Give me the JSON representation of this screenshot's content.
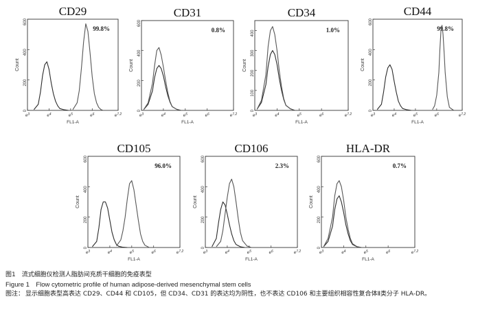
{
  "figure": {
    "caption_cn": "图1　流式细胞仪检测人脂肪间充质干细胞的免疫表型",
    "caption_en": "Figure 1　Flow cytometric profile of human adipose-derived mesenchymal stem cells",
    "note_label": "图注：",
    "note_text": "显示细胞表型高表达 CD29、CD44 和 CD105，但 CD34、CD31 的表达均为阴性，也不表达 CD106 和主要组织相容性复合体Ⅱ类分子 HLA-DR。"
  },
  "chart_data": [
    {
      "type": "area",
      "title": "CD29",
      "percent": "99.8%",
      "xlabel": "FL1-A",
      "ylabel": "Count",
      "xscale": "log",
      "xlim": [
        3,
        7.2
      ],
      "ylim": [
        0,
        600
      ],
      "xtick_labels": [
        "10^3",
        "10^4",
        "10^5",
        "10^6",
        "10^7.2"
      ],
      "ytick_labels": [
        "0",
        "200",
        "400",
        "600"
      ],
      "series": [
        {
          "x": [
            3.3,
            3.5,
            3.6,
            3.7,
            3.8,
            3.9,
            4.0,
            4.1,
            4.2,
            4.3,
            4.4,
            4.5,
            4.7,
            4.9
          ],
          "y": [
            5,
            40,
            120,
            230,
            300,
            320,
            270,
            180,
            110,
            60,
            30,
            12,
            4,
            0
          ]
        },
        {
          "x": [
            5.1,
            5.3,
            5.4,
            5.5,
            5.6,
            5.7,
            5.8,
            5.9,
            6.0,
            6.1,
            6.2,
            6.3,
            6.4,
            6.5
          ],
          "y": [
            5,
            50,
            130,
            280,
            450,
            570,
            520,
            380,
            220,
            110,
            50,
            20,
            6,
            0
          ]
        }
      ]
    },
    {
      "type": "area",
      "title": "CD31",
      "percent": "0.8%",
      "xlabel": "FL1-A",
      "ylabel": "Count",
      "xscale": "log",
      "xlim": [
        3,
        7.2
      ],
      "ylim": [
        0,
        600
      ],
      "xtick_labels": [
        "10^3",
        "10^4",
        "10^5",
        "10^6",
        "10^7.2"
      ],
      "ytick_labels": [
        "0",
        "200",
        "400",
        "600"
      ],
      "series": [
        {
          "x": [
            3.1,
            3.3,
            3.5,
            3.6,
            3.7,
            3.8,
            3.9,
            4.0,
            4.1,
            4.2,
            4.3,
            4.4,
            4.6,
            4.8
          ],
          "y": [
            5,
            40,
            130,
            220,
            280,
            300,
            280,
            230,
            160,
            100,
            55,
            25,
            8,
            0
          ]
        },
        {
          "x": [
            3.1,
            3.3,
            3.5,
            3.6,
            3.7,
            3.8,
            3.9,
            4.0,
            4.1,
            4.2,
            4.3,
            4.4,
            4.6,
            4.8
          ],
          "y": [
            5,
            50,
            180,
            300,
            400,
            420,
            370,
            290,
            200,
            120,
            60,
            25,
            8,
            0
          ]
        }
      ]
    },
    {
      "type": "area",
      "title": "CD34",
      "percent": "1.0%",
      "xlabel": "FL1-A",
      "ylabel": "Count",
      "xscale": "log",
      "xlim": [
        3,
        7.2
      ],
      "ylim": [
        0,
        450
      ],
      "xtick_labels": [
        "10^3",
        "10^4",
        "10^5",
        "10^6",
        "10^7.2"
      ],
      "ytick_labels": [
        "0",
        "100",
        "200",
        "300",
        "400"
      ],
      "series": [
        {
          "x": [
            3.1,
            3.3,
            3.5,
            3.6,
            3.7,
            3.8,
            3.9,
            4.0,
            4.1,
            4.2,
            4.3,
            4.4,
            4.6,
            4.8
          ],
          "y": [
            5,
            40,
            130,
            220,
            280,
            300,
            280,
            230,
            160,
            100,
            55,
            25,
            8,
            0
          ]
        },
        {
          "x": [
            3.1,
            3.3,
            3.5,
            3.6,
            3.7,
            3.8,
            3.9,
            4.0,
            4.1,
            4.2,
            4.3,
            4.4,
            4.6,
            4.8
          ],
          "y": [
            5,
            50,
            180,
            320,
            400,
            420,
            380,
            300,
            200,
            120,
            60,
            25,
            8,
            0
          ]
        }
      ]
    },
    {
      "type": "area",
      "title": "CD44",
      "percent": "99.8%",
      "xlabel": "FL1-A",
      "ylabel": "Count",
      "xscale": "log",
      "xlim": [
        3,
        7.2
      ],
      "ylim": [
        0,
        600
      ],
      "xtick_labels": [
        "10^3",
        "10^4",
        "10^5",
        "10^6",
        "10^7.2"
      ],
      "ytick_labels": [
        "0",
        "200",
        "400",
        "600"
      ],
      "series": [
        {
          "x": [
            3.2,
            3.4,
            3.5,
            3.6,
            3.7,
            3.8,
            3.9,
            4.0,
            4.1,
            4.2,
            4.3,
            4.4,
            4.6,
            4.8
          ],
          "y": [
            5,
            40,
            120,
            220,
            280,
            300,
            270,
            190,
            120,
            60,
            30,
            12,
            4,
            0
          ]
        },
        {
          "x": [
            5.8,
            5.9,
            6.0,
            6.1,
            6.15,
            6.2,
            6.25,
            6.3,
            6.35,
            6.4,
            6.5,
            6.6,
            6.8
          ],
          "y": [
            5,
            30,
            100,
            250,
            400,
            520,
            560,
            500,
            380,
            250,
            90,
            20,
            0
          ]
        }
      ]
    },
    {
      "type": "area",
      "title": "CD105",
      "percent": "96.0%",
      "xlabel": "FL1-A",
      "ylabel": "Count",
      "xscale": "log",
      "xlim": [
        3,
        7.2
      ],
      "ylim": [
        0,
        600
      ],
      "xtick_labels": [
        "10^3",
        "10^4",
        "10^5",
        "10^6",
        "10^7.2"
      ],
      "ytick_labels": [
        "0",
        "200",
        "400",
        "600"
      ],
      "series": [
        {
          "x": [
            3.2,
            3.4,
            3.5,
            3.6,
            3.7,
            3.8,
            3.9,
            4.0,
            4.1,
            4.2,
            4.3,
            4.4,
            4.6,
            4.8
          ],
          "y": [
            5,
            40,
            130,
            250,
            300,
            300,
            260,
            180,
            100,
            50,
            20,
            8,
            2,
            0
          ]
        },
        {
          "x": [
            4.3,
            4.5,
            4.6,
            4.7,
            4.8,
            4.9,
            5.0,
            5.1,
            5.2,
            5.3,
            5.4,
            5.5,
            5.6,
            5.8
          ],
          "y": [
            10,
            50,
            110,
            200,
            320,
            420,
            440,
            380,
            280,
            180,
            90,
            40,
            15,
            0
          ]
        }
      ]
    },
    {
      "type": "area",
      "title": "CD106",
      "percent": "2.3%",
      "xlabel": "FL1-A",
      "ylabel": "Count",
      "xscale": "log",
      "xlim": [
        3,
        7.2
      ],
      "ylim": [
        0,
        600
      ],
      "xtick_labels": [
        "10^3",
        "10^4",
        "10^5",
        "10^6",
        "10^7.2"
      ],
      "ytick_labels": [
        "0",
        "200",
        "400",
        "600"
      ],
      "series": [
        {
          "x": [
            3.3,
            3.5,
            3.6,
            3.7,
            3.8,
            3.9,
            4.0,
            4.1,
            4.2,
            4.3,
            4.4,
            4.6,
            4.8
          ],
          "y": [
            5,
            60,
            160,
            250,
            300,
            280,
            220,
            150,
            90,
            45,
            20,
            5,
            0
          ]
        },
        {
          "x": [
            3.5,
            3.7,
            3.8,
            3.9,
            4.0,
            4.1,
            4.2,
            4.3,
            4.4,
            4.5,
            4.6,
            4.7,
            4.9,
            5.1
          ],
          "y": [
            5,
            40,
            110,
            220,
            330,
            420,
            450,
            400,
            300,
            190,
            100,
            45,
            10,
            0
          ]
        }
      ]
    },
    {
      "type": "area",
      "title": "HLA-DR",
      "percent": "0.7%",
      "xlabel": "FL1-A",
      "ylabel": "Count",
      "xscale": "log",
      "xlim": [
        3,
        7.2
      ],
      "ylim": [
        0,
        600
      ],
      "xtick_labels": [
        "10^3",
        "10^4",
        "10^5",
        "10^6",
        "10^7.2"
      ],
      "ytick_labels": [
        "0",
        "200",
        "400",
        "600"
      ],
      "series": [
        {
          "x": [
            3.1,
            3.3,
            3.5,
            3.6,
            3.7,
            3.8,
            3.9,
            4.0,
            4.1,
            4.2,
            4.3,
            4.4,
            4.6,
            4.8
          ],
          "y": [
            5,
            40,
            140,
            250,
            320,
            340,
            300,
            230,
            150,
            90,
            45,
            20,
            5,
            0
          ]
        },
        {
          "x": [
            3.1,
            3.3,
            3.5,
            3.6,
            3.7,
            3.8,
            3.9,
            4.0,
            4.1,
            4.2,
            4.3,
            4.4,
            4.6,
            4.8
          ],
          "y": [
            5,
            60,
            200,
            340,
            420,
            440,
            400,
            310,
            200,
            120,
            60,
            25,
            6,
            0
          ]
        }
      ]
    }
  ]
}
